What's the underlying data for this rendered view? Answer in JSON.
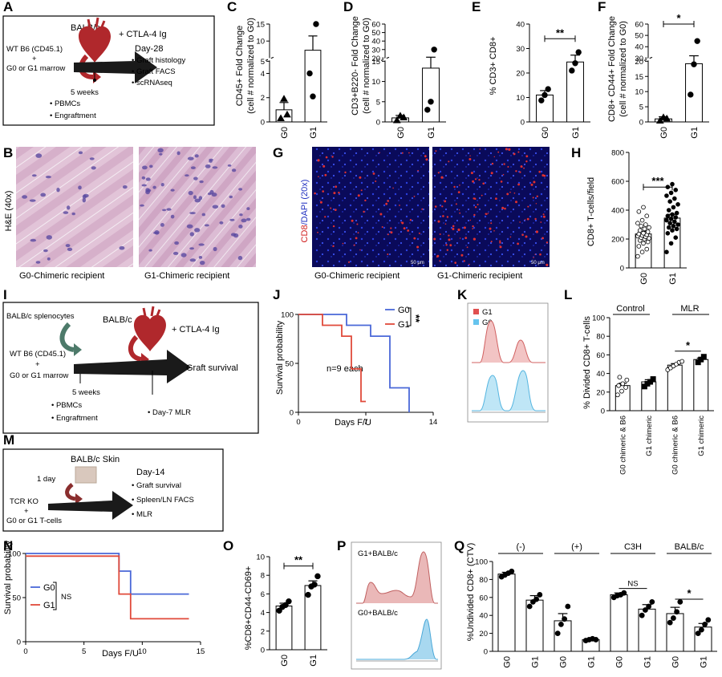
{
  "panels": {
    "A": {
      "letter": "A",
      "donor": "BALB/c",
      "drug": "+  CTLA-4 Ig",
      "day": "Day-28",
      "recipient_l1": "WT B6 (CD45.1)",
      "plus": "+",
      "recipient_l2": "G0 or G1 marrow",
      "outcomes": [
        "Graft histology",
        "Graft FACS",
        "scRNAseq"
      ],
      "weeks": "5 weeks",
      "tests": [
        "PBMCs",
        "Engraftment"
      ]
    },
    "C": {
      "letter": "C",
      "ylabel_1": "CD45+ Fold Change",
      "ylabel_2": "(cell # normalized to G0)"
    },
    "D": {
      "letter": "D",
      "ylabel_1": "CD3+B220- Fold Change",
      "ylabel_2": "(cell # normalized to G0)"
    },
    "E": {
      "letter": "E",
      "ylabel_1": "% CD3+ CD8+",
      "sig": "**"
    },
    "F": {
      "letter": "F",
      "ylabel_1": "CD8+ CD44+ Fold Change",
      "ylabel_2": "(cell # normalized to G0)",
      "sig": "*"
    },
    "B": {
      "letter": "B",
      "ylabel": "H&E (40x)",
      "cap_left": "G0-Chimeric recipient",
      "cap_right": "G1-Chimeric recipient"
    },
    "G": {
      "letter": "G",
      "ylabel_cd8": "CD8",
      "ylabel_rest": "/DAPI (20x)",
      "scale": "50 μm",
      "cap_left": "G0-Chimeric recipient",
      "cap_right": "G1-Chimeric recipient"
    },
    "H": {
      "letter": "H",
      "ylabel": "CD8+ T-cells/field",
      "sig": "***"
    },
    "I": {
      "letter": "I",
      "spleno": "BALB/c splenocytes",
      "donor": "BALB/c",
      "drug": "+  CTLA-4 Ig",
      "recipient_l1": "WT B6 (CD45.1)",
      "plus": "+",
      "recipient_l2": "G0 or G1 marrow",
      "outcome": "Graft survival",
      "weeks": "5 weeks",
      "tests": [
        "PBMCs",
        "Engraftment"
      ],
      "mlr": "Day-7 MLR"
    },
    "J": {
      "letter": "J",
      "ylabel": "Survival probability",
      "xlabel": "Days F/U",
      "n_label": "n=9 each",
      "sig": "**"
    },
    "K": {
      "letter": "K",
      "legend": [
        "G1",
        "G0"
      ]
    },
    "L": {
      "letter": "L",
      "ylabel": "% Divided CD8+ T-cells",
      "group_left": "Control",
      "group_right": "MLR",
      "sig": "*",
      "xlabels": [
        "G0 chimeric & B6",
        "G1 chimeric",
        "G0 chimeric & B6",
        "G1 chimeric"
      ]
    },
    "M": {
      "letter": "M",
      "skin": "BALB/c Skin",
      "timing": "1 day",
      "day": "Day-14",
      "recipient_l1": "TCR KO",
      "plus": "+",
      "recipient_l2": "G0 or G1 T-cells",
      "outcomes": [
        "Graft survival",
        "Spleen/LN FACS",
        "MLR"
      ]
    },
    "N": {
      "letter": "N",
      "ylabel": "Survival probability",
      "xlabel": "Days F/U",
      "sig": "NS"
    },
    "O": {
      "letter": "O",
      "ylabel": "%CD8+CD44-CD69+",
      "sig": "**"
    },
    "P": {
      "letter": "P",
      "label_top": "G1+BALB/c",
      "label_bottom": "G0+BALB/c"
    },
    "Q": {
      "letter": "Q",
      "ylabel": "%Undivided CD8+ (CTV)",
      "groups": [
        "(-)",
        "(+)",
        "C3H",
        "BALB/c"
      ],
      "sig_c3h": "NS",
      "sig_balbc": "*"
    }
  },
  "colors": {
    "G0": "#4a68d8",
    "G1": "#e04a3a",
    "K_G1": "#e05050",
    "K_G0": "#66c4ee",
    "heart": "#b0282c",
    "arrow": "#1a1a1a"
  },
  "chart_data": [
    {
      "panel": "C",
      "type": "bar",
      "categories": [
        "G0",
        "G1"
      ],
      "yticks": [
        0,
        2,
        4,
        5,
        10,
        15
      ],
      "axis_break": [
        5,
        5
      ],
      "values": [
        1.0,
        7.3
      ],
      "sem": [
        0.6,
        4.2
      ],
      "points": [
        [
          0.3,
          1.9,
          0.6
        ],
        [
          4.0,
          2.1,
          15.0
        ]
      ]
    },
    {
      "panel": "D",
      "type": "bar",
      "categories": [
        "G0",
        "G1"
      ],
      "yticks": [
        0,
        5,
        10,
        15,
        20,
        30,
        40,
        50,
        60
      ],
      "axis_break": [
        15,
        20
      ],
      "values": [
        1.0,
        13.3
      ],
      "sem": [
        0.6,
        7.7
      ],
      "points": [
        [
          0.4,
          1.5,
          1.1
        ],
        [
          3.0,
          5.0,
          30.0
        ]
      ]
    },
    {
      "panel": "E",
      "type": "bar",
      "categories": [
        "G0",
        "G1"
      ],
      "ylim": [
        0,
        40
      ],
      "yticks": [
        0,
        10,
        20,
        30,
        40
      ],
      "values": [
        11,
        24.5
      ],
      "sem": [
        1.8,
        2.8
      ],
      "points": [
        [
          8.8,
          11.0,
          13.4
        ],
        [
          21.0,
          24.0,
          28.5
        ]
      ]
    },
    {
      "panel": "F",
      "type": "bar",
      "categories": [
        "G0",
        "G1"
      ],
      "yticks": [
        0,
        5,
        10,
        15,
        20,
        30,
        40,
        50,
        60
      ],
      "axis_break": [
        20,
        30
      ],
      "values": [
        1.0,
        25.0
      ],
      "sem": [
        0.7,
        7.0
      ],
      "points": [
        [
          0.4,
          1.5,
          1.1
        ],
        [
          9.0,
          19.0,
          45.0
        ]
      ]
    },
    {
      "panel": "H",
      "type": "bar",
      "categories": [
        "G0",
        "G1"
      ],
      "ylim": [
        0,
        800
      ],
      "yticks": [
        0,
        200,
        400,
        600,
        800
      ],
      "values": [
        235,
        345
      ],
      "sem": [
        18,
        26
      ],
      "points": [
        [
          80,
          110,
          130,
          150,
          170,
          180,
          190,
          200,
          205,
          210,
          215,
          220,
          225,
          230,
          235,
          240,
          250,
          260,
          270,
          280,
          290,
          300,
          310,
          330,
          360,
          390,
          420
        ],
        [
          110,
          170,
          210,
          240,
          260,
          270,
          280,
          290,
          300,
          310,
          320,
          330,
          340,
          350,
          360,
          370,
          380,
          400,
          420,
          440,
          460,
          480,
          500,
          520,
          540,
          560,
          580
        ]
      ]
    },
    {
      "panel": "J",
      "type": "line",
      "xlim": [
        0,
        14
      ],
      "ylim": [
        0,
        100
      ],
      "xticks": [
        0,
        7,
        14
      ],
      "yticks": [
        0,
        50,
        100
      ],
      "series": [
        {
          "name": "G0",
          "steps": [
            [
              0,
              100
            ],
            [
              5,
              100
            ],
            [
              5,
              88.9
            ],
            [
              7.5,
              88.9
            ],
            [
              7.5,
              77.8
            ],
            [
              9.5,
              77.8
            ],
            [
              9.5,
              25
            ],
            [
              11.5,
              25
            ],
            [
              11.5,
              0
            ]
          ]
        },
        {
          "name": "G1",
          "steps": [
            [
              0,
              100
            ],
            [
              2.5,
              100
            ],
            [
              2.5,
              88.9
            ],
            [
              4.5,
              88.9
            ],
            [
              4.5,
              77.8
            ],
            [
              5.5,
              77.8
            ],
            [
              5.5,
              44.4
            ],
            [
              6.5,
              44.4
            ],
            [
              6.5,
              11.1
            ],
            [
              7,
              11.1
            ]
          ]
        }
      ]
    },
    {
      "panel": "L",
      "type": "bar",
      "categories": [
        "G0 chimeric & B6",
        "G1 chimeric",
        "G0 chimeric & B6",
        "G1 chimeric"
      ],
      "ylim": [
        0,
        100
      ],
      "yticks": [
        0,
        20,
        40,
        60,
        80,
        100
      ],
      "values": [
        27,
        31,
        49,
        55
      ],
      "sem": [
        2.5,
        2.3,
        1.6,
        1.5
      ],
      "points": [
        [
          17,
          21,
          25,
          27,
          29,
          33,
          36
        ],
        [
          26,
          29,
          31,
          34
        ],
        [
          44,
          46,
          48,
          50,
          52,
          53
        ],
        [
          52,
          55,
          58
        ]
      ]
    },
    {
      "panel": "N",
      "type": "line",
      "xlim": [
        0,
        15
      ],
      "ylim": [
        0,
        100
      ],
      "xticks": [
        0,
        5,
        10,
        15
      ],
      "yticks": [
        0,
        50,
        100
      ],
      "series": [
        {
          "name": "G0",
          "steps": [
            [
              0,
              100
            ],
            [
              8,
              100
            ],
            [
              8,
              80
            ],
            [
              9,
              80
            ],
            [
              9,
              54
            ],
            [
              14,
              54
            ]
          ]
        },
        {
          "name": "G1",
          "steps": [
            [
              0,
              97
            ],
            [
              8,
              97
            ],
            [
              8,
              54
            ],
            [
              9,
              54
            ],
            [
              9,
              26
            ],
            [
              14,
              26
            ]
          ]
        }
      ]
    },
    {
      "panel": "O",
      "type": "bar",
      "categories": [
        "G0",
        "G1"
      ],
      "ylim": [
        0,
        10
      ],
      "yticks": [
        0,
        2,
        4,
        6,
        8,
        10
      ],
      "values": [
        4.7,
        6.9
      ],
      "sem": [
        0.3,
        0.5
      ],
      "points": [
        [
          4.2,
          4.6,
          4.8,
          5.2
        ],
        [
          5.9,
          6.8,
          7.0,
          7.9
        ]
      ]
    },
    {
      "panel": "Q",
      "type": "bar",
      "categories": [
        "G0",
        "G1",
        "G0",
        "G1",
        "G0",
        "G1",
        "G0",
        "G1"
      ],
      "ylim": [
        0,
        100
      ],
      "yticks": [
        0,
        20,
        40,
        60,
        80,
        100
      ],
      "values": [
        86,
        57,
        34,
        13,
        63,
        47,
        42,
        27
      ],
      "sem": [
        2,
        5,
        8,
        1,
        2,
        5,
        7,
        4
      ],
      "points": [
        [
          83,
          85,
          87,
          89
        ],
        [
          50,
          55,
          58,
          63
        ],
        [
          20,
          30,
          36,
          50
        ],
        [
          12,
          13,
          14,
          13
        ],
        [
          60,
          62,
          63,
          65
        ],
        [
          40,
          46,
          50,
          55
        ],
        [
          32,
          37,
          44,
          55
        ],
        [
          20,
          24,
          30,
          35
        ]
      ]
    }
  ]
}
